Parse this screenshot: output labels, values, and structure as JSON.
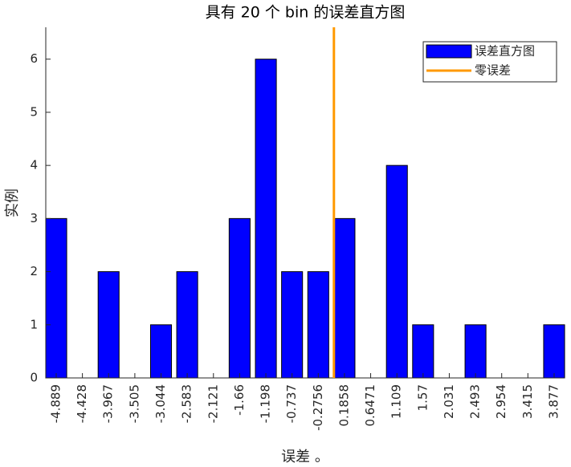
{
  "chart_data": {
    "type": "bar",
    "title": "具有 20 个 bin 的误差直方图",
    "xlabel": "误差 。",
    "ylabel": "实例",
    "x": [
      -4.889,
      -4.428,
      -3.967,
      -3.505,
      -3.044,
      -2.583,
      -2.121,
      -1.66,
      -1.198,
      -0.737,
      -0.2756,
      0.1858,
      0.6471,
      1.109,
      1.57,
      2.031,
      2.493,
      2.954,
      3.415,
      3.877
    ],
    "series": [
      {
        "name": "误差直方图",
        "color": "#0000ff",
        "values": [
          3,
          0,
          2,
          0,
          1,
          2,
          0,
          3,
          6,
          2,
          2,
          3,
          0,
          4,
          1,
          0,
          1,
          0,
          0,
          1
        ]
      }
    ],
    "reference_line": {
      "name": "零误差",
      "color": "#ff9900",
      "x": 0
    },
    "xlim": [
      -5.073,
      4.061
    ],
    "xticks": [
      -4.889,
      -4.428,
      -3.967,
      -3.505,
      -3.044,
      -2.583,
      -2.121,
      -1.66,
      -1.198,
      -0.737,
      -0.2756,
      0.1858,
      0.6471,
      1.109,
      1.57,
      2.031,
      2.493,
      2.954,
      3.415,
      3.877
    ],
    "ylim": [
      0,
      6.6
    ],
    "yticks": [
      0,
      1,
      2,
      3,
      4,
      5,
      6
    ],
    "legend": "northeast"
  }
}
